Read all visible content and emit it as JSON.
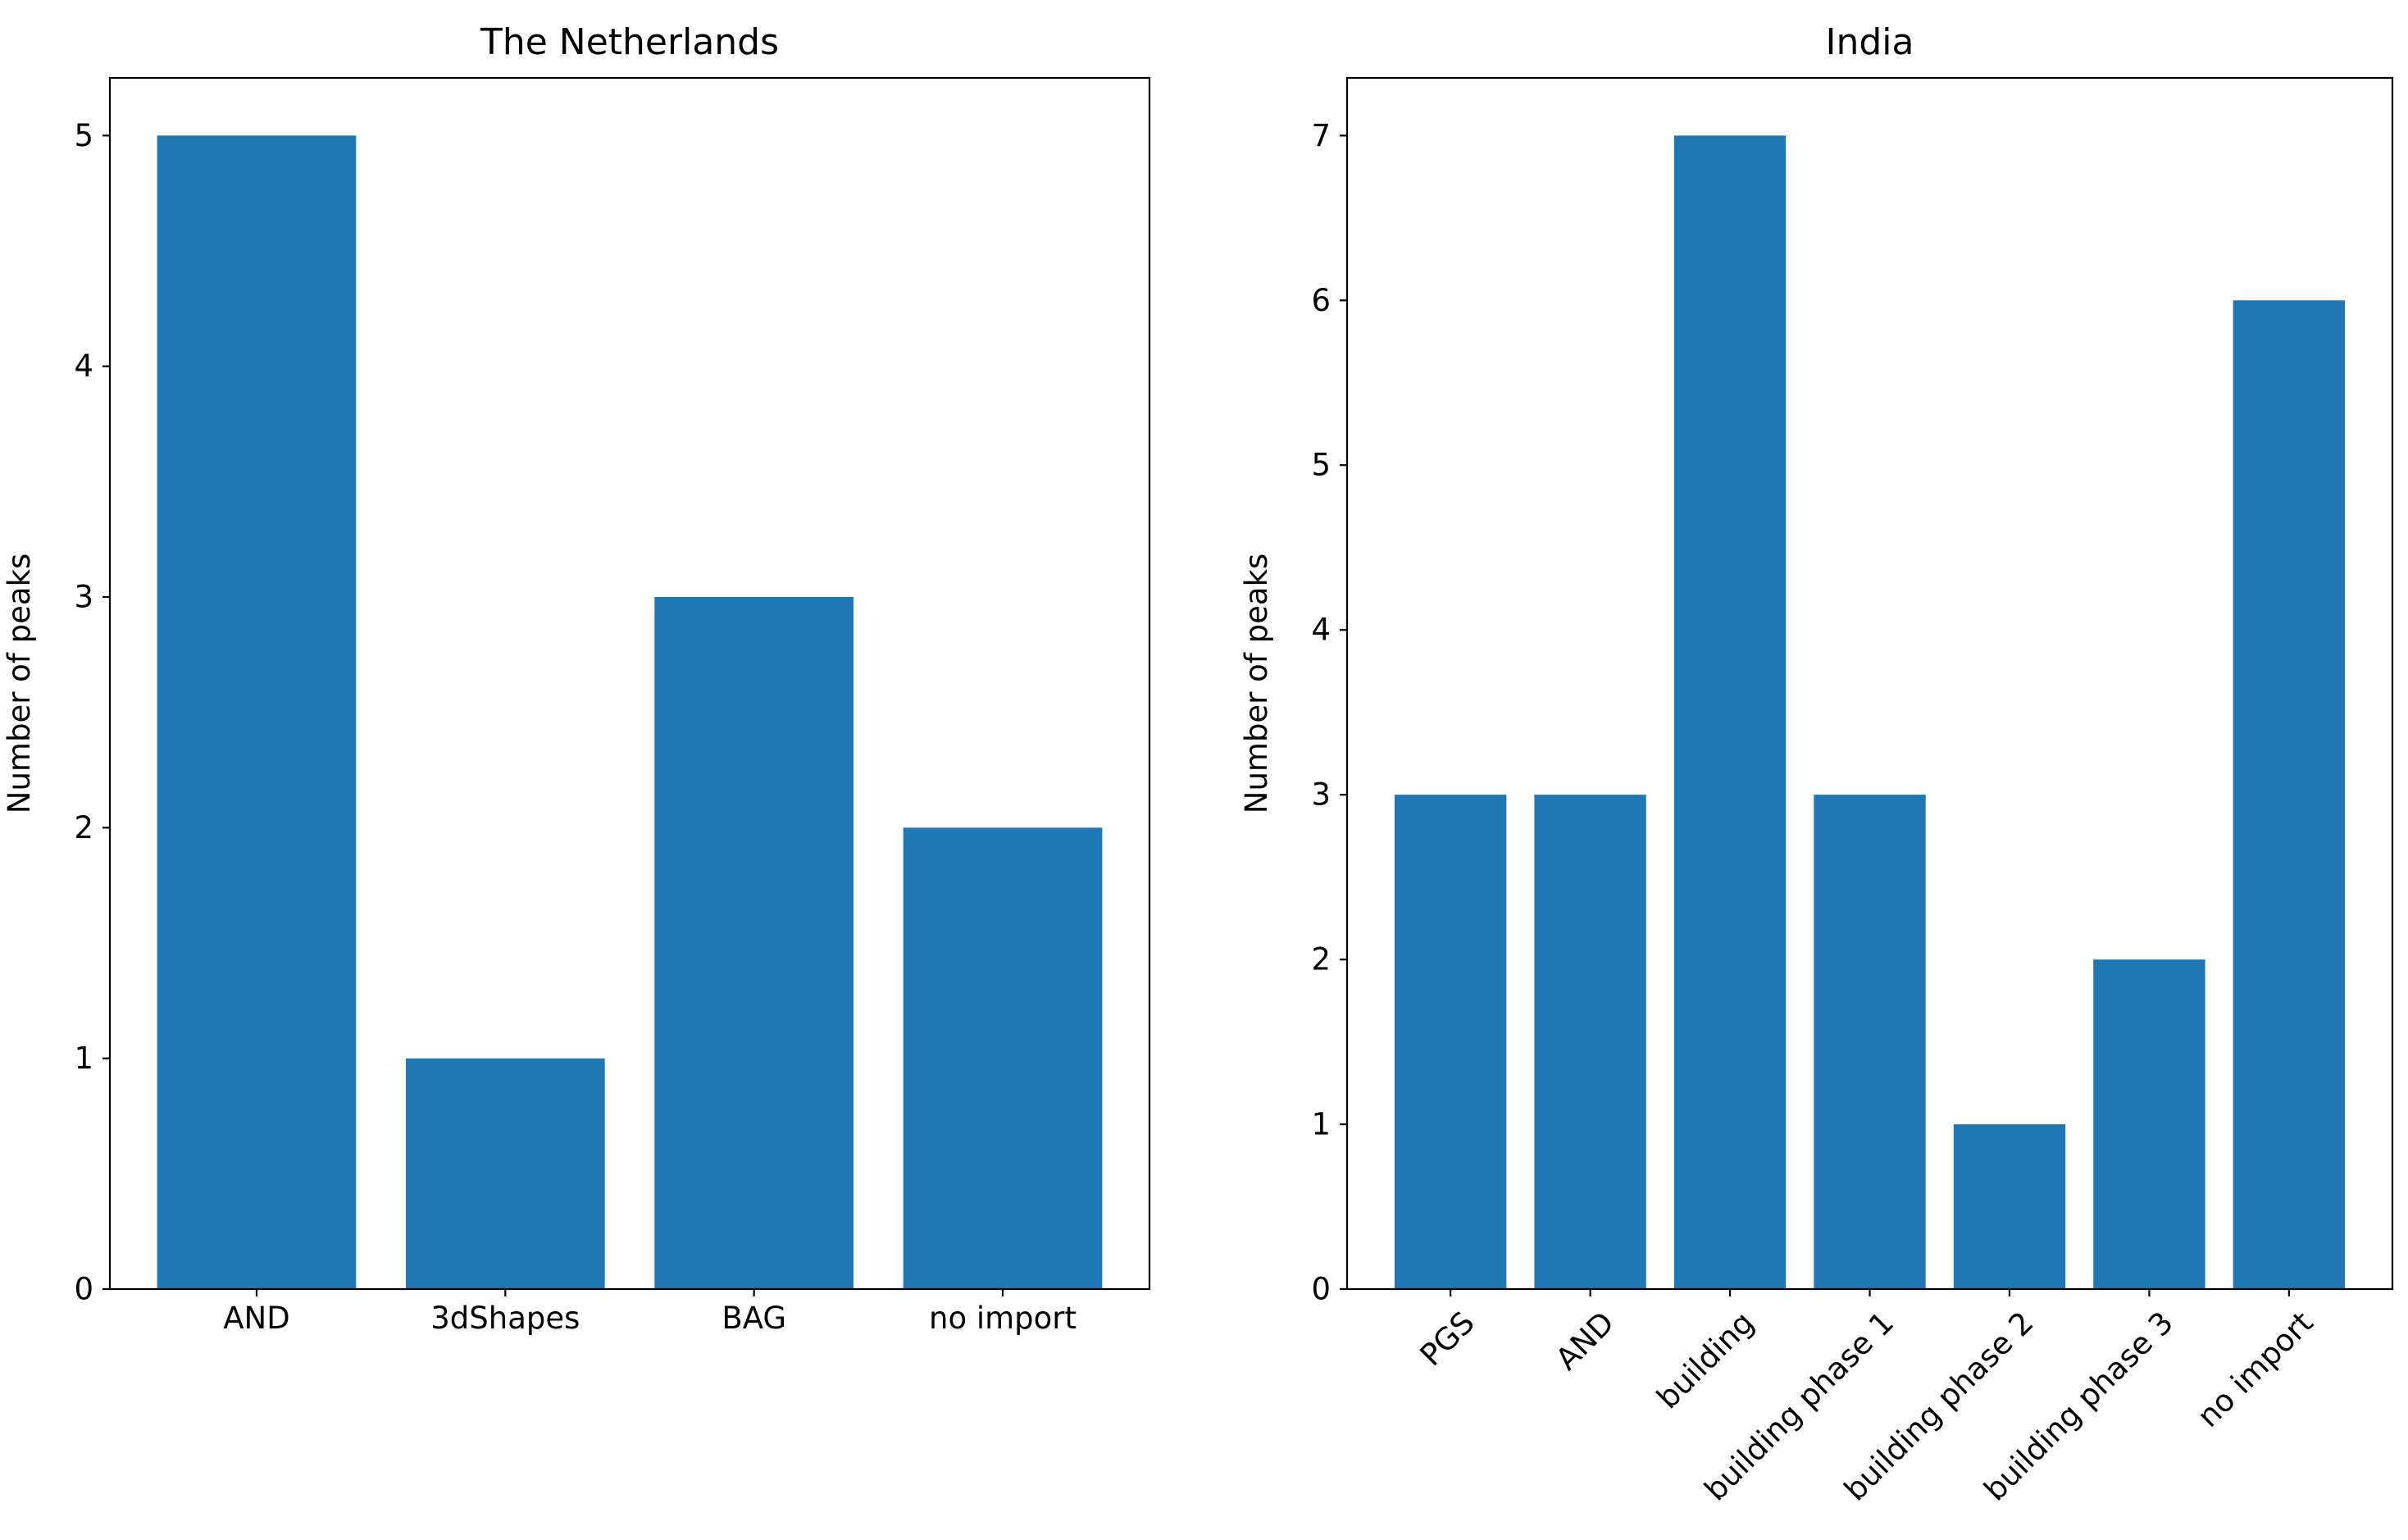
{
  "chart_data": [
    {
      "type": "bar",
      "title": "The Netherlands",
      "xlabel": "",
      "ylabel": "Number of peaks",
      "categories": [
        "AND",
        "3dShapes",
        "BAG",
        "no import"
      ],
      "values": [
        5,
        1,
        3,
        2
      ],
      "ylim": [
        0,
        5.25
      ],
      "yticks": [
        0,
        1,
        2,
        3,
        4,
        5
      ],
      "xtick_rotation": 0,
      "bar_color": "#1f77b4",
      "grid": false
    },
    {
      "type": "bar",
      "title": "India",
      "xlabel": "",
      "ylabel": "Number of peaks",
      "categories": [
        "PGS",
        "AND",
        "building",
        "building phase 1",
        "building phase 2",
        "building phase 3",
        "no import"
      ],
      "values": [
        3,
        3,
        7,
        3,
        1,
        2,
        6
      ],
      "ylim": [
        0,
        7.35
      ],
      "yticks": [
        0,
        1,
        2,
        3,
        4,
        5,
        6,
        7
      ],
      "xtick_rotation": -45,
      "bar_color": "#1f77b4",
      "grid": false
    }
  ]
}
